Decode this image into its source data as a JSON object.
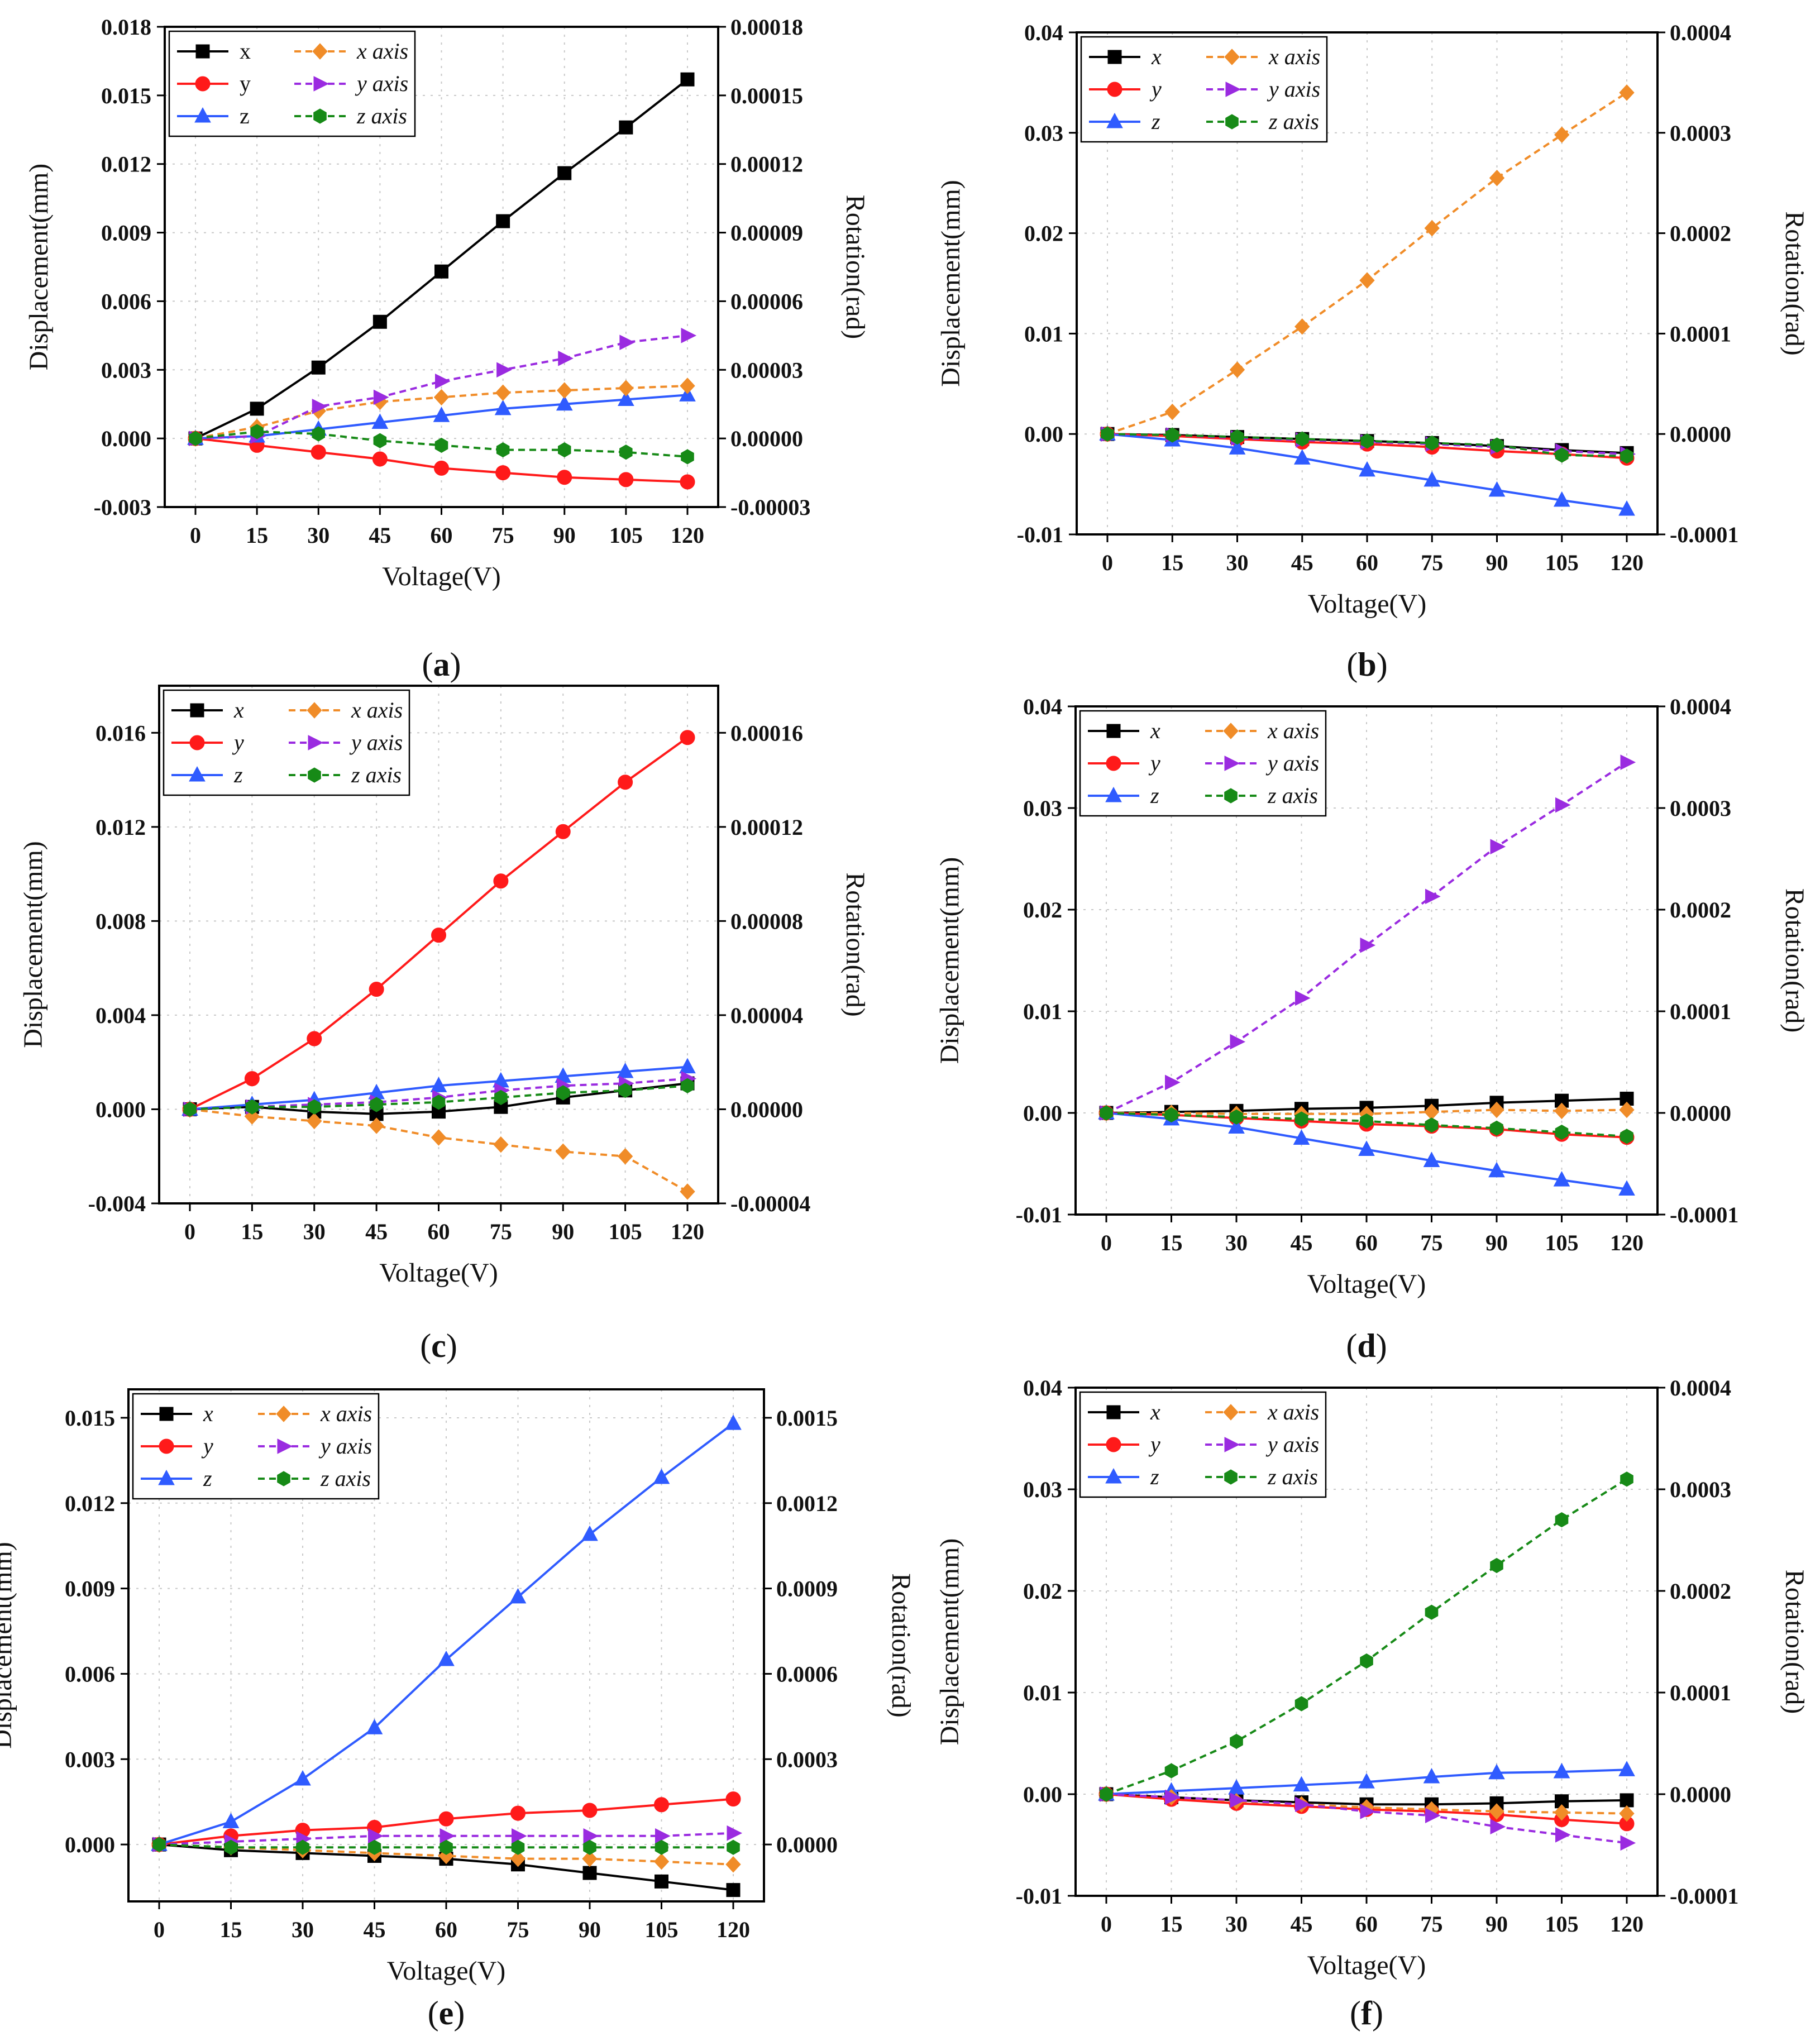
{
  "figure": {
    "x_label": "Voltage(V)",
    "y_label": "Displacement(mm)",
    "y2_label": "Rotation(rad)"
  },
  "styles": {
    "x": {
      "color": "#000000",
      "marker": "square",
      "dash": false
    },
    "y": {
      "color": "#ff1a1a",
      "marker": "circle",
      "dash": false
    },
    "z": {
      "color": "#2f5bff",
      "marker": "triangle",
      "dash": false
    },
    "x axis": {
      "color": "#f08c28",
      "marker": "diamond",
      "dash": true
    },
    "y axis": {
      "color": "#9a2be0",
      "marker": "tri-right",
      "dash": true
    },
    "z axis": {
      "color": "#178a17",
      "marker": "hexagon",
      "dash": true
    }
  },
  "chart_data": [
    {
      "id": "a",
      "caption_letter": "a",
      "type": "line",
      "x": [
        0,
        15,
        30,
        45,
        60,
        75,
        90,
        105,
        120
      ],
      "x_ticks": [
        "0",
        "15",
        "30",
        "45",
        "60",
        "75",
        "90",
        "105",
        "120"
      ],
      "ylim": [
        -0.003,
        0.018
      ],
      "y_ticks": [
        "-0.003",
        "0.000",
        "0.003",
        "0.006",
        "0.009",
        "0.012",
        "0.015",
        "0.018"
      ],
      "y2lim": [
        -3e-05,
        0.00018
      ],
      "y2_ticks": [
        "-0.00003",
        "0.00000",
        "0.00003",
        "0.00006",
        "0.00009",
        "0.00012",
        "0.00015",
        "0.00018"
      ],
      "legend_upright": true,
      "series": [
        {
          "name": "x",
          "axis": "left",
          "values": [
            0,
            0.0013,
            0.0031,
            0.0051,
            0.0073,
            0.0095,
            0.0116,
            0.0136,
            0.0157
          ]
        },
        {
          "name": "y",
          "axis": "left",
          "values": [
            0,
            -0.0003,
            -0.0006,
            -0.0009,
            -0.0013,
            -0.0015,
            -0.0017,
            -0.0018,
            -0.0019
          ]
        },
        {
          "name": "z",
          "axis": "left",
          "values": [
            0,
            0.0001,
            0.0004,
            0.0007,
            0.001,
            0.0013,
            0.0015,
            0.0017,
            0.0019
          ]
        },
        {
          "name": "x axis",
          "axis": "right",
          "values": [
            0,
            5e-06,
            1.2e-05,
            1.6e-05,
            1.8e-05,
            2e-05,
            2.1e-05,
            2.2e-05,
            2.3e-05
          ]
        },
        {
          "name": "y axis",
          "axis": "right",
          "values": [
            0,
            1e-06,
            1.4e-05,
            1.8e-05,
            2.5e-05,
            3e-05,
            3.5e-05,
            4.2e-05,
            4.5e-05
          ]
        },
        {
          "name": "z axis",
          "axis": "right",
          "values": [
            0,
            3e-06,
            2e-06,
            -1e-06,
            -3e-06,
            -5e-06,
            -5e-06,
            -6e-06,
            -8e-06
          ]
        }
      ]
    },
    {
      "id": "b",
      "caption_letter": "b",
      "type": "line",
      "x": [
        0,
        15,
        30,
        45,
        60,
        75,
        90,
        105,
        120
      ],
      "x_ticks": [
        "0",
        "15",
        "30",
        "45",
        "60",
        "75",
        "90",
        "105",
        "120"
      ],
      "ylim": [
        -0.01,
        0.04
      ],
      "y_ticks": [
        "-0.01",
        "0.00",
        "0.01",
        "0.02",
        "0.03",
        "0.04"
      ],
      "y2lim": [
        -0.0001,
        0.0004
      ],
      "y2_ticks": [
        "-0.0001",
        "0.0000",
        "0.0001",
        "0.0002",
        "0.0003",
        "0.0004"
      ],
      "legend_upright": false,
      "series": [
        {
          "name": "x",
          "axis": "left",
          "values": [
            0,
            -0.0001,
            -0.0003,
            -0.0005,
            -0.0007,
            -0.0009,
            -0.0012,
            -0.0016,
            -0.0019
          ]
        },
        {
          "name": "y",
          "axis": "left",
          "values": [
            0,
            -0.0002,
            -0.0005,
            -0.0008,
            -0.001,
            -0.0013,
            -0.0017,
            -0.002,
            -0.0024
          ]
        },
        {
          "name": "z",
          "axis": "left",
          "values": [
            0,
            -0.0006,
            -0.0014,
            -0.0024,
            -0.0036,
            -0.0046,
            -0.0056,
            -0.0066,
            -0.0075
          ]
        },
        {
          "name": "x axis",
          "axis": "right",
          "values": [
            0,
            2.2e-05,
            6.4e-05,
            0.000107,
            0.000153,
            0.000205,
            0.000255,
            0.000298,
            0.00034
          ]
        },
        {
          "name": "y axis",
          "axis": "right",
          "values": [
            0,
            -1e-06,
            -4e-06,
            -6e-06,
            -8e-06,
            -1e-05,
            -1.3e-05,
            -1.7e-05,
            -2e-05
          ]
        },
        {
          "name": "z axis",
          "axis": "right",
          "values": [
            0,
            -1e-06,
            -3e-06,
            -5e-06,
            -7e-06,
            -9e-06,
            -1.1e-05,
            -2.1e-05,
            -2.2e-05
          ]
        }
      ]
    },
    {
      "id": "c",
      "caption_letter": "c",
      "type": "line",
      "x": [
        0,
        15,
        30,
        45,
        60,
        75,
        90,
        105,
        120
      ],
      "x_ticks": [
        "0",
        "15",
        "30",
        "45",
        "60",
        "75",
        "90",
        "105",
        "120"
      ],
      "ylim": [
        -0.004,
        0.018
      ],
      "y_ticks": [
        "-0.004",
        "0.000",
        "0.004",
        "0.008",
        "0.012",
        "0.016"
      ],
      "y2lim": [
        -4e-05,
        0.00018
      ],
      "y2_ticks": [
        "-0.00004",
        "0.00000",
        "0.00004",
        "0.00008",
        "0.00012",
        "0.00016"
      ],
      "legend_upright": false,
      "series": [
        {
          "name": "x",
          "axis": "left",
          "values": [
            0,
            0.0001,
            -0.0001,
            -0.0002,
            -0.0001,
            0.0001,
            0.0005,
            0.0008,
            0.0011
          ]
        },
        {
          "name": "y",
          "axis": "left",
          "values": [
            0,
            0.0013,
            0.003,
            0.0051,
            0.0074,
            0.0097,
            0.0118,
            0.0139,
            0.0158
          ]
        },
        {
          "name": "z",
          "axis": "left",
          "values": [
            0,
            0.0002,
            0.0004,
            0.0007,
            0.001,
            0.0012,
            0.0014,
            0.0016,
            0.0018
          ]
        },
        {
          "name": "x axis",
          "axis": "right",
          "values": [
            0,
            -3e-06,
            -5e-06,
            -7e-06,
            -1.2e-05,
            -1.5e-05,
            -1.8e-05,
            -2e-05,
            -3.5e-05
          ]
        },
        {
          "name": "y axis",
          "axis": "right",
          "values": [
            0,
            1e-06,
            2e-06,
            3e-06,
            5e-06,
            8e-06,
            1e-05,
            1.1e-05,
            1.3e-05
          ]
        },
        {
          "name": "z axis",
          "axis": "right",
          "values": [
            0,
            1e-06,
            1e-06,
            2e-06,
            3e-06,
            5e-06,
            7e-06,
            8e-06,
            1e-05
          ]
        }
      ]
    },
    {
      "id": "d",
      "caption_letter": "d",
      "type": "line",
      "x": [
        0,
        15,
        30,
        45,
        60,
        75,
        90,
        105,
        120
      ],
      "x_ticks": [
        "0",
        "15",
        "30",
        "45",
        "60",
        "75",
        "90",
        "105",
        "120"
      ],
      "ylim": [
        -0.01,
        0.04
      ],
      "y_ticks": [
        "-0.01",
        "0.00",
        "0.01",
        "0.02",
        "0.03",
        "0.04"
      ],
      "y2lim": [
        -0.0001,
        0.0004
      ],
      "y2_ticks": [
        "-0.0001",
        "0.0000",
        "0.0001",
        "0.0002",
        "0.0003",
        "0.0004"
      ],
      "legend_upright": false,
      "series": [
        {
          "name": "x",
          "axis": "left",
          "values": [
            0,
            0.0001,
            0.0002,
            0.0004,
            0.0005,
            0.0007,
            0.001,
            0.0012,
            0.0014
          ]
        },
        {
          "name": "y",
          "axis": "left",
          "values": [
            0,
            -0.0002,
            -0.0005,
            -0.0008,
            -0.0011,
            -0.0013,
            -0.0016,
            -0.0021,
            -0.0024
          ]
        },
        {
          "name": "z",
          "axis": "left",
          "values": [
            0,
            -0.0006,
            -0.0014,
            -0.0025,
            -0.0036,
            -0.0047,
            -0.0057,
            -0.0066,
            -0.0075
          ]
        },
        {
          "name": "x axis",
          "axis": "right",
          "values": [
            0,
            0.0,
            -1e-06,
            -1e-06,
            -1e-06,
            1e-06,
            3e-06,
            2e-06,
            3e-06
          ]
        },
        {
          "name": "y axis",
          "axis": "right",
          "values": [
            0,
            3e-05,
            7e-05,
            0.000113,
            0.000165,
            0.000213,
            0.000262,
            0.000303,
            0.000345
          ]
        },
        {
          "name": "z axis",
          "axis": "right",
          "values": [
            0,
            -2e-06,
            -4e-06,
            -6e-06,
            -8e-06,
            -1.2e-05,
            -1.5e-05,
            -1.9e-05,
            -2.3e-05
          ]
        }
      ]
    },
    {
      "id": "e",
      "caption_letter": "e",
      "type": "line",
      "x": [
        0,
        15,
        30,
        45,
        60,
        75,
        90,
        105,
        120
      ],
      "x_ticks": [
        "0",
        "15",
        "30",
        "45",
        "60",
        "75",
        "90",
        "105",
        "120"
      ],
      "ylim": [
        -0.002,
        0.016
      ],
      "y_ticks": [
        "0.000",
        "0.003",
        "0.006",
        "0.009",
        "0.012",
        "0.015"
      ],
      "y_tick_values": [
        0,
        0.003,
        0.006,
        0.009,
        0.012,
        0.015
      ],
      "y2lim": [
        -0.0002,
        0.0016
      ],
      "y2_ticks": [
        "0.0000",
        "0.0003",
        "0.0006",
        "0.0009",
        "0.0012",
        "0.0015"
      ],
      "y2_tick_values": [
        0,
        0.0003,
        0.0006,
        0.0009,
        0.0012,
        0.0015
      ],
      "legend_upright": false,
      "series": [
        {
          "name": "x",
          "axis": "left",
          "values": [
            0,
            -0.0002,
            -0.0003,
            -0.0004,
            -0.0005,
            -0.0007,
            -0.001,
            -0.0013,
            -0.0016
          ]
        },
        {
          "name": "y",
          "axis": "left",
          "values": [
            0,
            0.0003,
            0.0005,
            0.0006,
            0.0009,
            0.0011,
            0.0012,
            0.0014,
            0.0016
          ]
        },
        {
          "name": "z",
          "axis": "left",
          "values": [
            0,
            0.0008,
            0.0023,
            0.0041,
            0.0065,
            0.0087,
            0.0109,
            0.0129,
            0.0148
          ]
        },
        {
          "name": "x axis",
          "axis": "right",
          "values": [
            0,
            -1e-05,
            -2e-05,
            -3e-05,
            -4e-05,
            -5e-05,
            -5e-05,
            -6e-05,
            -7e-05
          ]
        },
        {
          "name": "y axis",
          "axis": "right",
          "values": [
            0,
            1e-05,
            2e-05,
            3e-05,
            3e-05,
            3e-05,
            3e-05,
            3e-05,
            4e-05
          ]
        },
        {
          "name": "z axis",
          "axis": "right",
          "values": [
            0,
            -1e-05,
            -1e-05,
            -1e-05,
            -1e-05,
            -1e-05,
            -1e-05,
            -1e-05,
            -1e-05
          ]
        }
      ]
    },
    {
      "id": "f",
      "caption_letter": "f",
      "type": "line",
      "x": [
        0,
        15,
        30,
        45,
        60,
        75,
        90,
        105,
        120
      ],
      "x_ticks": [
        "0",
        "15",
        "30",
        "45",
        "60",
        "75",
        "90",
        "105",
        "120"
      ],
      "ylim": [
        -0.01,
        0.04
      ],
      "y_ticks": [
        "-0.01",
        "0.00",
        "0.01",
        "0.02",
        "0.03",
        "0.04"
      ],
      "y2lim": [
        -0.0001,
        0.0004
      ],
      "y2_ticks": [
        "-0.0001",
        "0.0000",
        "0.0001",
        "0.0002",
        "0.0003",
        "0.0004"
      ],
      "legend_upright": false,
      "series": [
        {
          "name": "x",
          "axis": "left",
          "values": [
            0,
            -0.0003,
            -0.0006,
            -0.0008,
            -0.001,
            -0.001,
            -0.0009,
            -0.0007,
            -0.0006
          ]
        },
        {
          "name": "y",
          "axis": "left",
          "values": [
            0,
            -0.0005,
            -0.0009,
            -0.0012,
            -0.0015,
            -0.0017,
            -0.002,
            -0.0025,
            -0.0029
          ]
        },
        {
          "name": "z",
          "axis": "left",
          "values": [
            0,
            0.0003,
            0.0006,
            0.0009,
            0.0012,
            0.0017,
            0.0021,
            0.0022,
            0.0024
          ]
        },
        {
          "name": "x axis",
          "axis": "right",
          "values": [
            0,
            -3e-06,
            -7e-06,
            -1e-05,
            -1.3e-05,
            -1.5e-05,
            -1.7e-05,
            -1.8e-05,
            -1.9e-05
          ]
        },
        {
          "name": "y axis",
          "axis": "right",
          "values": [
            0,
            -3e-06,
            -6e-06,
            -1e-05,
            -1.7e-05,
            -2.1e-05,
            -3.2e-05,
            -4e-05,
            -4.8e-05
          ]
        },
        {
          "name": "z axis",
          "axis": "right",
          "values": [
            0,
            2.3e-05,
            5.2e-05,
            8.9e-05,
            0.000131,
            0.000179,
            0.000225,
            0.00027,
            0.00031
          ]
        }
      ]
    }
  ]
}
